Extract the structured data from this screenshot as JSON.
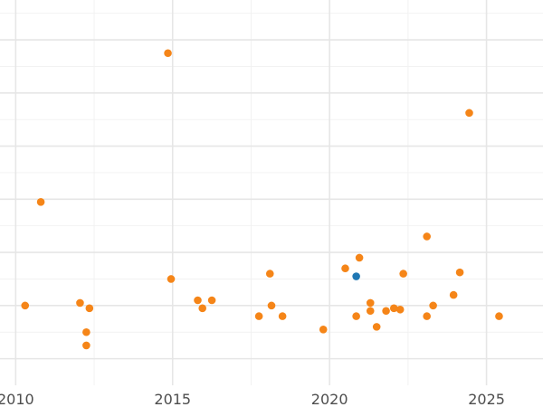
{
  "chart_data": {
    "type": "scatter",
    "title": "",
    "xlabel": "",
    "ylabel": "",
    "xlim": [
      2009.5,
      2026.8
    ],
    "ylim": [
      0,
      14.5
    ],
    "x_ticks": [
      2010,
      2015,
      2020,
      2025
    ],
    "x_tick_labels": [
      "2010",
      "2015",
      "2020",
      "2025"
    ],
    "y_major_ticks": [
      1,
      3,
      5,
      7,
      9,
      11,
      13
    ],
    "y_minor_ticks": [
      2,
      4,
      6,
      8,
      10,
      12,
      14
    ],
    "y_tick_labels_visible": false,
    "grid": true,
    "legend": "none",
    "series": [
      {
        "color": "#f58518",
        "points": [
          [
            2010.3,
            3.0
          ],
          [
            2010.8,
            6.9
          ],
          [
            2012.05,
            3.1
          ],
          [
            2012.25,
            2.0
          ],
          [
            2012.25,
            1.5
          ],
          [
            2012.35,
            2.9
          ],
          [
            2014.85,
            12.5
          ],
          [
            2014.95,
            4.0
          ],
          [
            2015.8,
            3.2
          ],
          [
            2015.95,
            2.9
          ],
          [
            2016.25,
            3.2
          ],
          [
            2017.75,
            2.6
          ],
          [
            2018.1,
            4.2
          ],
          [
            2018.15,
            3.0
          ],
          [
            2018.5,
            2.6
          ],
          [
            2019.8,
            2.1
          ],
          [
            2020.5,
            4.4
          ],
          [
            2020.85,
            2.6
          ],
          [
            2020.95,
            4.8
          ],
          [
            2021.3,
            3.1
          ],
          [
            2021.3,
            2.8
          ],
          [
            2021.5,
            2.2
          ],
          [
            2021.8,
            2.8
          ],
          [
            2022.05,
            2.9
          ],
          [
            2022.25,
            2.85
          ],
          [
            2022.35,
            4.2
          ],
          [
            2023.1,
            5.6
          ],
          [
            2023.1,
            2.6
          ],
          [
            2023.3,
            3.0
          ],
          [
            2023.95,
            3.4
          ],
          [
            2024.15,
            4.25
          ],
          [
            2024.45,
            10.25
          ],
          [
            2025.4,
            2.6
          ]
        ]
      },
      {
        "color": "#1f77b4",
        "points": [
          [
            2020.85,
            4.1
          ]
        ]
      }
    ]
  }
}
